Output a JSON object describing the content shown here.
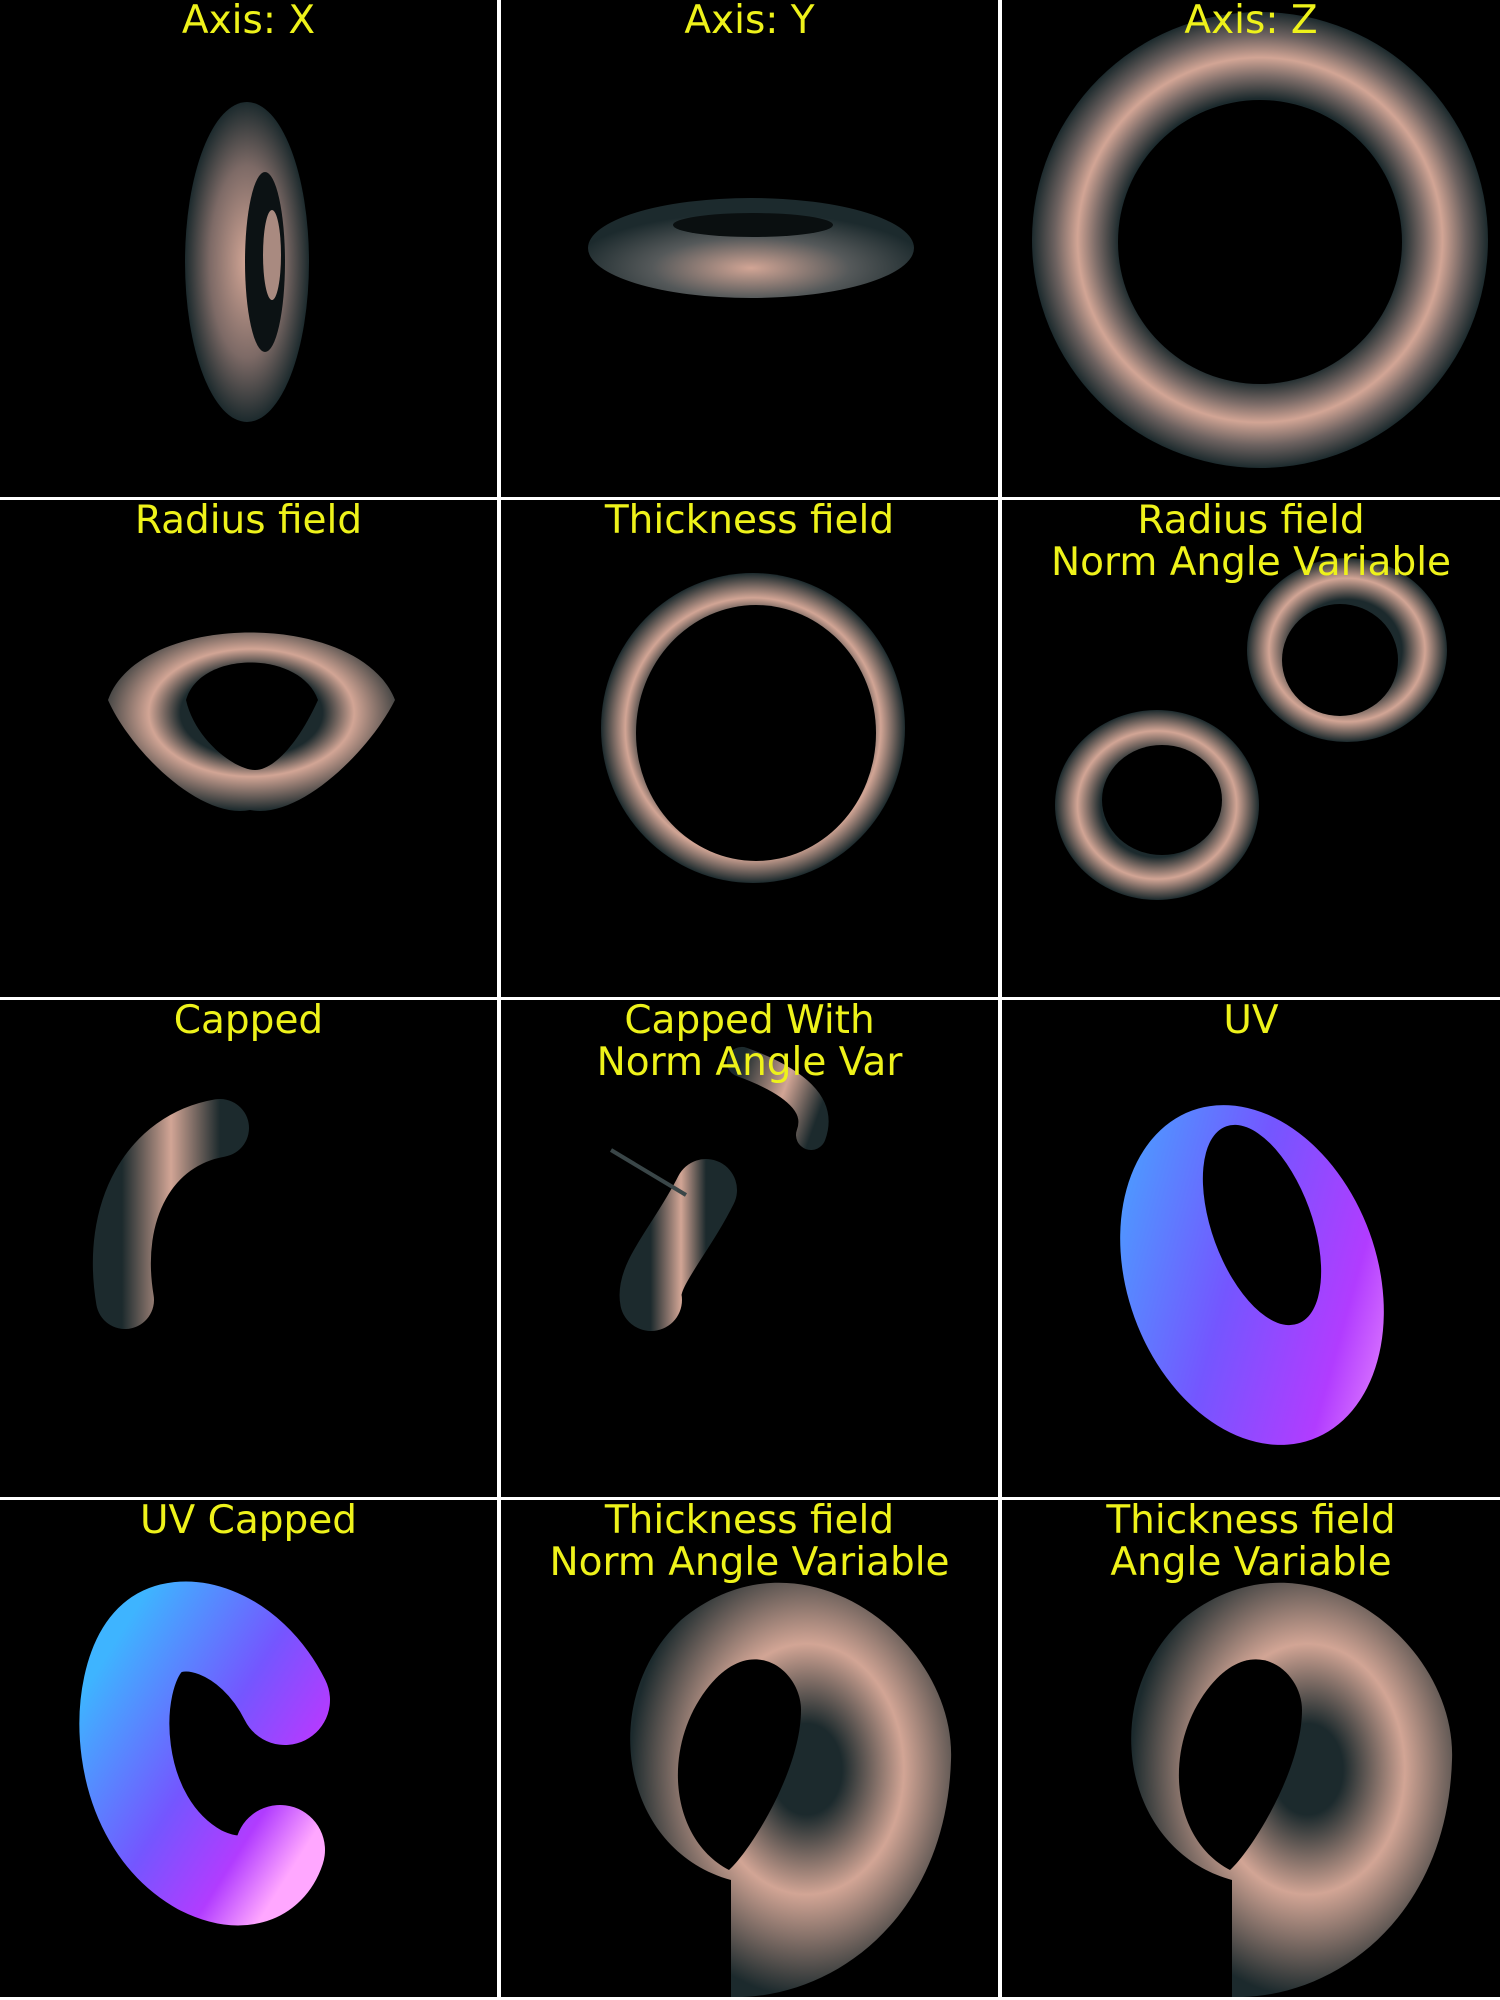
{
  "panels": [
    {
      "label": "Axis: X"
    },
    {
      "label": "Axis: Y"
    },
    {
      "label": "Axis: Z"
    },
    {
      "label": "Radius field"
    },
    {
      "label": "Thickness field"
    },
    {
      "label": "Radius field\nNorm Angle Variable"
    },
    {
      "label": "Capped"
    },
    {
      "label": "Capped With\nNorm Angle Var"
    },
    {
      "label": "UV"
    },
    {
      "label": "UV Capped"
    },
    {
      "label": "Thickness field\nNorm Angle Variable"
    },
    {
      "label": "Thickness field\nAngle Variable"
    }
  ],
  "colors": {
    "background": "#000000",
    "label": "#eef21a",
    "separator": "#ffffff",
    "surface_highlight": "#d2a595",
    "surface_shadow": "#1c2a2d"
  }
}
